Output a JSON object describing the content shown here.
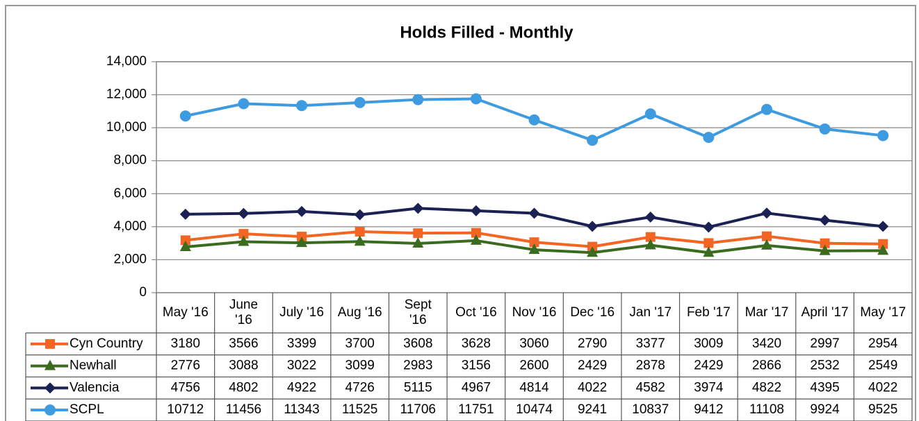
{
  "chart_data": {
    "type": "line",
    "title": "Holds Filled - Monthly",
    "categories": [
      "May '16",
      "June\n'16",
      "July '16",
      "Aug '16",
      "Sept\n'16",
      "Oct '16",
      "Nov '16",
      "Dec '16",
      "Jan '17",
      "Feb '17",
      "Mar '17",
      "April '17",
      "May '17"
    ],
    "series": [
      {
        "name": "Cyn Country",
        "color": "#f26522",
        "marker": "square",
        "values": [
          3180,
          3566,
          3399,
          3700,
          3608,
          3628,
          3060,
          2790,
          3377,
          3009,
          3420,
          2997,
          2954
        ]
      },
      {
        "name": "Newhall",
        "color": "#3b6b1f",
        "marker": "triangle",
        "values": [
          2776,
          3088,
          3022,
          3099,
          2983,
          3156,
          2600,
          2429,
          2878,
          2429,
          2866,
          2532,
          2549
        ]
      },
      {
        "name": "Valencia",
        "color": "#1b2253",
        "marker": "diamond",
        "values": [
          4756,
          4802,
          4922,
          4726,
          5115,
          4967,
          4814,
          4022,
          4582,
          3974,
          4822,
          4395,
          4022
        ]
      },
      {
        "name": "SCPL",
        "color": "#3f9be0",
        "marker": "circle",
        "values": [
          10712,
          11456,
          11343,
          11525,
          11706,
          11751,
          10474,
          9241,
          10837,
          9412,
          11108,
          9924,
          9525
        ]
      }
    ],
    "ylim": [
      0,
      14000
    ],
    "yticks": [
      0,
      {
        "value": 2000,
        "label": "2,000"
      },
      {
        "value": 4000,
        "label": "4,000"
      },
      {
        "value": 6000,
        "label": "6,000"
      },
      {
        "value": 8000,
        "label": "8,000"
      },
      {
        "value": 10000,
        "label": "10,000"
      },
      {
        "value": 12000,
        "label": "12,000"
      },
      {
        "value": 14000,
        "label": "14,000"
      }
    ],
    "grid": true
  }
}
